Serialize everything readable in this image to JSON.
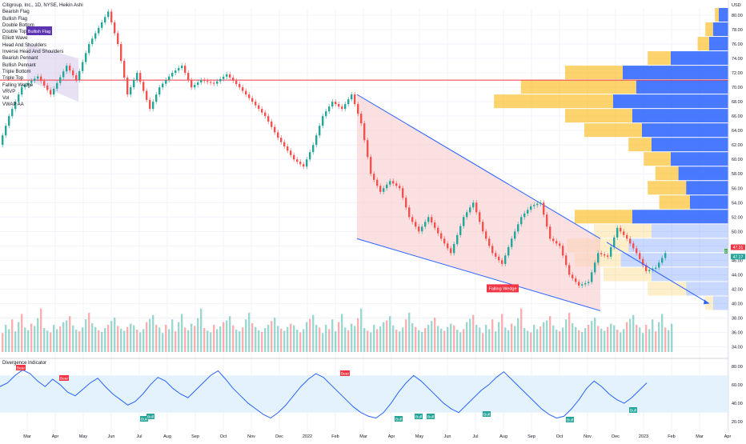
{
  "header": {
    "symbol_title": "Citigroup, Inc., 1D, NYSE, Heikin Ashi",
    "indicators": [
      "Bearish Flag",
      "Bullish Flag",
      "Double Bottom",
      "Double Top",
      "Elliott Wave",
      "Head And Shoulders",
      "Inverse Head And Shoulders",
      "Bearish Pennant",
      "Bullish Pennant",
      "Triple Bottom",
      "Triple Top",
      "Falling Wedge",
      "VRVP",
      "Vol",
      "VWAP AA"
    ]
  },
  "labels": {
    "bullish_flag": "Bullish Flag",
    "falling_wedge": "Falling Wedge",
    "divergence_title": "Divergence Indicator",
    "bear_label": "Bear",
    "bull_label": "Bull",
    "currency": "USD",
    "last_price_1": "47.31",
    "last_price_2": "47.17",
    "price_badge_c": "C",
    "price_badge_e": "E"
  },
  "colors": {
    "up": "#26a69a",
    "down": "#ef5350",
    "wedge_fill": "#f8c6c9",
    "wedge_line": "#2962ff",
    "horizontal_line": "#f23645",
    "vp_up": "#2962ff",
    "vp_down": "#fbc02d",
    "osc_line": "#2962ff",
    "osc_band": "#e3f2fd"
  },
  "chart_data": [
    {
      "type": "candlestick",
      "title": "Citigroup, Inc., 1D, NYSE, Heikin Ashi",
      "x_ticks": [
        "Mar",
        "Apr",
        "May",
        "Jun",
        "Jul",
        "Aug",
        "Sep",
        "Oct",
        "Nov",
        "Dec",
        "2022",
        "Feb",
        "Mar",
        "Apr",
        "May",
        "Jun",
        "Jul",
        "Aug",
        "Sep",
        "Oct",
        "Nov",
        "Dec",
        "2023",
        "Feb",
        "Mar",
        "Apr"
      ],
      "y_ticks": [
        34.0,
        36.0,
        38.0,
        40.0,
        42.0,
        44.0,
        46.0,
        48.0,
        50.0,
        52.0,
        54.0,
        56.0,
        58.0,
        60.0,
        62.0,
        64.0,
        66.0,
        68.0,
        70.0,
        72.0,
        74.0,
        76.0,
        78.0,
        80.0
      ],
      "ylim": [
        33.5,
        81
      ],
      "price_path": [
        [
          0,
          62
        ],
        [
          3,
          66
        ],
        [
          7,
          70
        ],
        [
          12,
          71.5
        ],
        [
          16,
          69
        ],
        [
          21,
          73
        ],
        [
          24,
          71
        ],
        [
          28,
          76
        ],
        [
          32,
          79
        ],
        [
          34,
          80.5
        ],
        [
          37,
          76
        ],
        [
          40,
          69
        ],
        [
          43,
          72
        ],
        [
          47,
          67
        ],
        [
          50,
          70
        ],
        [
          54,
          72
        ],
        [
          57,
          73
        ],
        [
          60,
          70
        ],
        [
          63,
          71
        ],
        [
          67,
          70.5
        ],
        [
          71,
          71.8
        ],
        [
          75,
          70
        ],
        [
          79,
          68
        ],
        [
          83,
          66
        ],
        [
          87,
          63
        ],
        [
          92,
          60
        ],
        [
          95,
          59
        ],
        [
          98,
          62
        ],
        [
          101,
          66
        ],
        [
          104,
          68
        ],
        [
          107,
          67
        ],
        [
          110,
          69
        ],
        [
          113,
          65
        ],
        [
          116,
          58
        ],
        [
          119,
          55.5
        ],
        [
          122,
          57
        ],
        [
          125,
          56
        ],
        [
          128,
          52
        ],
        [
          131,
          50
        ],
        [
          134,
          52
        ],
        [
          138,
          49
        ],
        [
          141,
          47
        ],
        [
          145,
          52
        ],
        [
          148,
          54
        ],
        [
          151,
          50
        ],
        [
          154,
          47
        ],
        [
          157,
          45.5
        ],
        [
          160,
          49
        ],
        [
          163,
          52
        ],
        [
          166,
          53.5
        ],
        [
          169,
          54
        ],
        [
          172,
          49
        ],
        [
          175,
          48
        ],
        [
          178,
          44
        ],
        [
          181,
          42.5
        ],
        [
          184,
          43
        ],
        [
          187,
          47
        ],
        [
          190,
          46.5
        ],
        [
          193,
          50.5
        ],
        [
          196,
          49
        ],
        [
          199,
          47
        ],
        [
          202,
          44.5
        ],
        [
          205,
          45
        ],
        [
          208,
          47
        ]
      ],
      "horizontal_line": 71.0,
      "wedge": {
        "upper": [
          [
            111,
            69
          ],
          [
            187,
            49
          ]
        ],
        "lower": [
          [
            111,
            49
          ],
          [
            187,
            39
          ]
        ]
      },
      "projection_arrow": [
        [
          189,
          48.5
        ],
        [
          221,
          40
        ]
      ]
    },
    {
      "type": "bar",
      "title": "Vol",
      "note": "daily volume bars",
      "level_fractions": [
        0.35,
        0.5,
        0.42,
        0.6,
        0.38,
        0.55,
        0.7,
        0.45,
        0.4,
        0.52,
        0.48,
        0.62,
        0.8,
        0.44,
        0.39,
        0.36,
        0.5,
        0.42,
        0.47,
        0.55,
        0.58,
        0.66,
        0.49,
        0.41,
        0.38,
        0.45,
        0.6,
        0.72,
        0.53,
        0.46,
        0.4,
        0.37,
        0.44,
        0.5,
        0.57,
        0.63,
        0.48,
        0.43,
        0.39,
        0.46,
        0.52,
        0.49,
        0.41,
        0.36,
        0.42,
        0.55,
        0.61,
        0.68,
        0.5,
        0.45
      ]
    },
    {
      "type": "line",
      "title": "Divergence Indicator",
      "y_ticks": [
        20.0,
        40.0,
        60.0,
        80.0
      ],
      "ylim": [
        15,
        85
      ],
      "bands": [
        30,
        70
      ],
      "values": [
        58,
        62,
        70,
        76,
        72,
        64,
        58,
        66,
        60,
        52,
        48,
        55,
        62,
        67,
        58,
        50,
        44,
        38,
        42,
        50,
        60,
        68,
        64,
        56,
        50,
        46,
        54,
        62,
        70,
        75,
        66,
        56,
        48,
        40,
        34,
        28,
        24,
        30,
        38,
        48,
        58,
        66,
        72,
        68,
        60,
        52,
        44,
        36,
        30,
        26,
        24,
        30,
        40,
        52,
        62,
        70,
        64,
        56,
        48,
        40,
        34,
        30,
        38,
        46,
        54,
        60,
        68,
        74,
        66,
        58,
        50,
        42,
        34,
        28,
        24,
        26,
        34,
        44,
        56,
        64,
        58,
        50,
        44,
        40,
        46,
        54,
        62
      ]
    }
  ],
  "volume_profile": {
    "price_levels": [
      80,
      78,
      76,
      74,
      72,
      70,
      68,
      66,
      64,
      62,
      60,
      58,
      56,
      54,
      52,
      50,
      48,
      46,
      44,
      42,
      40
    ],
    "up_fraction": [
      0.05,
      0.08,
      0.1,
      0.3,
      0.55,
      0.48,
      0.6,
      0.5,
      0.45,
      0.4,
      0.3,
      0.26,
      0.22,
      0.2,
      0.5,
      0.4,
      0.52,
      0.56,
      0.4,
      0.22,
      0.08
    ],
    "down_fraction": [
      0.02,
      0.04,
      0.06,
      0.12,
      0.3,
      0.6,
      0.62,
      0.35,
      0.3,
      0.12,
      0.14,
      0.12,
      0.2,
      0.16,
      0.3,
      0.3,
      0.32,
      0.24,
      0.25,
      0.2,
      0.04
    ]
  }
}
